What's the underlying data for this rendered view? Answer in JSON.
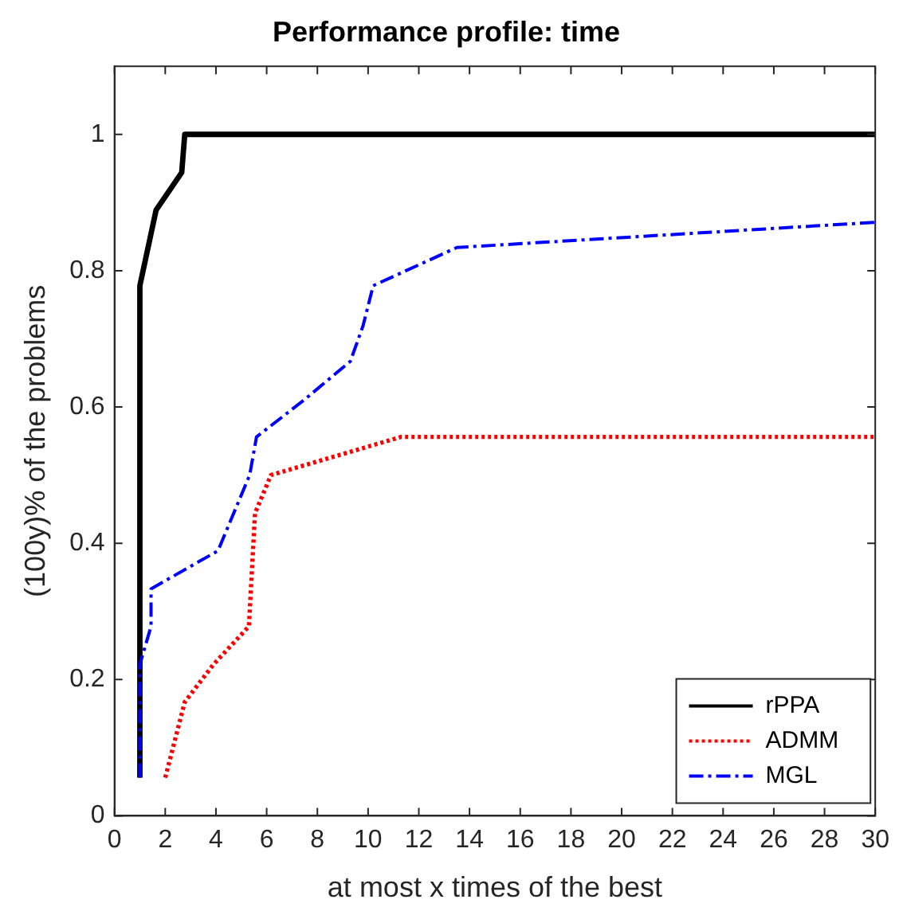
{
  "chart_data": {
    "type": "line",
    "title": "Performance profile: time",
    "xlabel": "at most x times of the best",
    "ylabel": "(100y)% of the problems",
    "xlim": [
      0,
      30
    ],
    "xticks": [
      0,
      2,
      4,
      6,
      8,
      10,
      12,
      14,
      16,
      18,
      20,
      22,
      24,
      26,
      28,
      30
    ],
    "ylim": [
      0,
      1.1
    ],
    "yticks": [
      0,
      0.2,
      0.4,
      0.6,
      0.8,
      1
    ],
    "grid": false,
    "legend": "bottom right",
    "marker": "none",
    "series": [
      {
        "name": "rPPA",
        "color": "#000000",
        "line_style": "solid",
        "x": [
          1,
          1,
          1.64,
          2.65,
          2.77,
          30
        ],
        "values": [
          0.056,
          0.778,
          0.889,
          0.944,
          1,
          1
        ]
      },
      {
        "name": "ADMM",
        "color": "#ff0000",
        "line_style": "dotted",
        "x": [
          2,
          2.77,
          3.9,
          5.3,
          5.54,
          6.17,
          11.3,
          30
        ],
        "values": [
          0.056,
          0.167,
          0.222,
          0.278,
          0.444,
          0.5,
          0.556,
          0.556
        ]
      },
      {
        "name": "MGL",
        "color": "#0000ff",
        "line_style": "dashed",
        "x": [
          1,
          1,
          1.44,
          1.44,
          4.08,
          5.33,
          5.6,
          7.5,
          9.3,
          9.8,
          10.2,
          13.5,
          30
        ],
        "values": [
          0.056,
          0.222,
          0.278,
          0.333,
          0.389,
          0.5,
          0.556,
          0.611,
          0.667,
          0.719,
          0.778,
          0.834,
          0.871
        ]
      }
    ]
  }
}
